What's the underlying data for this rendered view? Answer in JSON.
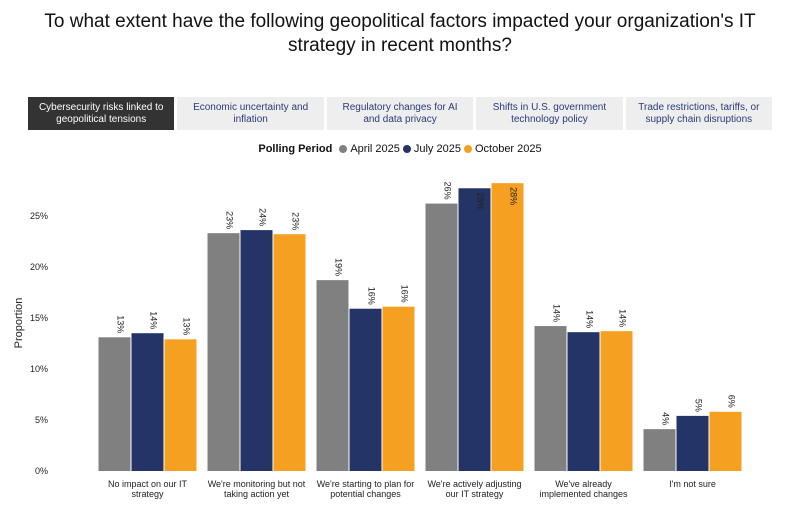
{
  "chart_data": {
    "type": "bar",
    "title": "To what extent have the following geopolitical factors impacted your organization's IT strategy in recent months?",
    "tabs": [
      "Cybersecurity risks linked to geopolitical tensions",
      "Economic uncertainty and inflation",
      "Regulatory changes for AI and data privacy",
      "Shifts in U.S. government technology policy",
      "Trade restrictions, tariffs, or supply chain disruptions"
    ],
    "active_tab": 0,
    "legend_title": "Polling Period",
    "y_label": "Proportion",
    "categories": [
      "No impact on our IT strategy",
      "We're monitoring but not taking action yet",
      "We're starting to plan for potential changes",
      "We're actively adjusting our IT strategy",
      "We've already implemented changes",
      "I'm not sure"
    ],
    "series": [
      {
        "name": "April 2025",
        "color": "#808080",
        "values": [
          13.1,
          23.3,
          18.7,
          26.2,
          14.2,
          4.1
        ],
        "value_labels": [
          "13%",
          "23%",
          "19%",
          "26%",
          "14%",
          "4%"
        ]
      },
      {
        "name": "July 2025",
        "color": "#243466",
        "values": [
          13.5,
          23.6,
          15.9,
          27.7,
          13.6,
          5.4
        ],
        "value_labels": [
          "14%",
          "24%",
          "16%",
          "28%",
          "14%",
          "5%"
        ]
      },
      {
        "name": "October 2025",
        "color": "#f5a020",
        "values": [
          12.9,
          23.2,
          16.1,
          28.2,
          13.7,
          5.8
        ],
        "value_labels": [
          "13%",
          "23%",
          "16%",
          "28%",
          "14%",
          "6%"
        ]
      }
    ],
    "ylim": [
      0,
      29
    ],
    "yticks": [
      {
        "value": 0,
        "label": "0%"
      },
      {
        "value": 5,
        "label": "5%"
      },
      {
        "value": 10,
        "label": "10%"
      },
      {
        "value": 15,
        "label": "15%"
      },
      {
        "value": 20,
        "label": "20%"
      },
      {
        "value": 25,
        "label": "25%"
      }
    ],
    "grid": false
  }
}
